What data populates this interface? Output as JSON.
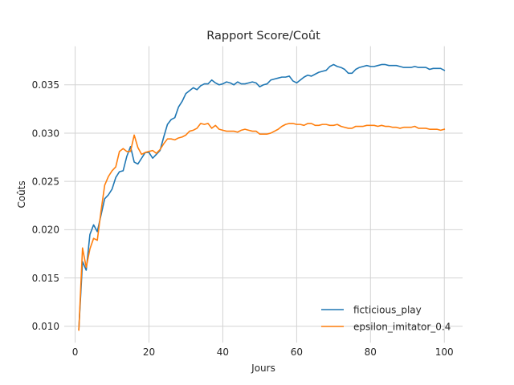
{
  "chart_data": {
    "type": "line",
    "title": "Rapport Score/Coût",
    "xlabel": "Jours",
    "ylabel": "Coûts",
    "xlim": [
      -2.95,
      104.95
    ],
    "ylim": [
      0.0083,
      0.039
    ],
    "xticks": [
      0,
      20,
      40,
      60,
      80,
      100
    ],
    "yticks": [
      0.01,
      0.015,
      0.02,
      0.025,
      0.03,
      0.035
    ],
    "xtick_labels": [
      "0",
      "20",
      "40",
      "60",
      "80",
      "100"
    ],
    "ytick_labels": [
      "0.010",
      "0.015",
      "0.020",
      "0.025",
      "0.030",
      "0.035"
    ],
    "grid": true,
    "legend_position": "lower-right",
    "x": [
      1,
      2,
      3,
      4,
      5,
      6,
      7,
      8,
      9,
      10,
      11,
      12,
      13,
      14,
      15,
      16,
      17,
      18,
      19,
      20,
      21,
      22,
      23,
      24,
      25,
      26,
      27,
      28,
      29,
      30,
      31,
      32,
      33,
      34,
      35,
      36,
      37,
      38,
      39,
      40,
      41,
      42,
      43,
      44,
      45,
      46,
      47,
      48,
      49,
      50,
      51,
      52,
      53,
      54,
      55,
      56,
      57,
      58,
      59,
      60,
      61,
      62,
      63,
      64,
      65,
      66,
      67,
      68,
      69,
      70,
      71,
      72,
      73,
      74,
      75,
      76,
      77,
      78,
      79,
      80,
      81,
      82,
      83,
      84,
      85,
      86,
      87,
      88,
      89,
      90,
      91,
      92,
      93,
      94,
      95,
      96,
      97,
      98,
      99,
      100
    ],
    "series": [
      {
        "name": "ficticious_play",
        "color": "#1f77b4",
        "values": [
          0.0097,
          0.0167,
          0.0158,
          0.0195,
          0.0205,
          0.0198,
          0.0215,
          0.0232,
          0.0236,
          0.0242,
          0.0254,
          0.026,
          0.0261,
          0.0276,
          0.0286,
          0.027,
          0.0268,
          0.0274,
          0.028,
          0.028,
          0.0274,
          0.0278,
          0.0282,
          0.0296,
          0.0309,
          0.0314,
          0.0316,
          0.0327,
          0.0333,
          0.0341,
          0.0344,
          0.0347,
          0.0345,
          0.0349,
          0.0351,
          0.0351,
          0.0355,
          0.0352,
          0.035,
          0.0351,
          0.0353,
          0.0352,
          0.035,
          0.0353,
          0.0351,
          0.0351,
          0.0352,
          0.0353,
          0.0352,
          0.0348,
          0.035,
          0.0351,
          0.0355,
          0.0356,
          0.0357,
          0.0358,
          0.0358,
          0.0359,
          0.0354,
          0.0352,
          0.0355,
          0.0358,
          0.036,
          0.0359,
          0.0361,
          0.0363,
          0.0364,
          0.0365,
          0.0369,
          0.0371,
          0.0369,
          0.0368,
          0.0366,
          0.0362,
          0.0362,
          0.0366,
          0.0368,
          0.0369,
          0.037,
          0.0369,
          0.0369,
          0.037,
          0.0371,
          0.0371,
          0.037,
          0.037,
          0.037,
          0.0369,
          0.0368,
          0.0368,
          0.0368,
          0.0369,
          0.0368,
          0.0368,
          0.0368,
          0.0366,
          0.0367,
          0.0367,
          0.0367,
          0.0365
        ]
      },
      {
        "name": "epsilon_imitator_0.4",
        "color": "#ff7f0e",
        "values": [
          0.0096,
          0.0181,
          0.0161,
          0.018,
          0.0191,
          0.0189,
          0.0219,
          0.0246,
          0.0255,
          0.0261,
          0.0265,
          0.0281,
          0.0284,
          0.0281,
          0.0281,
          0.0298,
          0.0285,
          0.0278,
          0.028,
          0.0281,
          0.0282,
          0.0279,
          0.0283,
          0.0289,
          0.0294,
          0.0294,
          0.0293,
          0.0295,
          0.0296,
          0.0298,
          0.0302,
          0.0303,
          0.0305,
          0.031,
          0.0309,
          0.031,
          0.0305,
          0.0308,
          0.0304,
          0.0303,
          0.0302,
          0.0302,
          0.0302,
          0.0301,
          0.0303,
          0.0304,
          0.0303,
          0.0302,
          0.0302,
          0.0299,
          0.0299,
          0.0299,
          0.03,
          0.0302,
          0.0304,
          0.0307,
          0.0309,
          0.031,
          0.031,
          0.0309,
          0.0309,
          0.0308,
          0.031,
          0.031,
          0.0308,
          0.0308,
          0.0309,
          0.0309,
          0.0308,
          0.0308,
          0.0309,
          0.0307,
          0.0306,
          0.0305,
          0.0305,
          0.0307,
          0.0307,
          0.0307,
          0.0308,
          0.0308,
          0.0308,
          0.0307,
          0.0308,
          0.0307,
          0.0307,
          0.0306,
          0.0306,
          0.0305,
          0.0306,
          0.0306,
          0.0306,
          0.0307,
          0.0305,
          0.0305,
          0.0305,
          0.0304,
          0.0304,
          0.0304,
          0.0303,
          0.0304
        ]
      }
    ]
  }
}
